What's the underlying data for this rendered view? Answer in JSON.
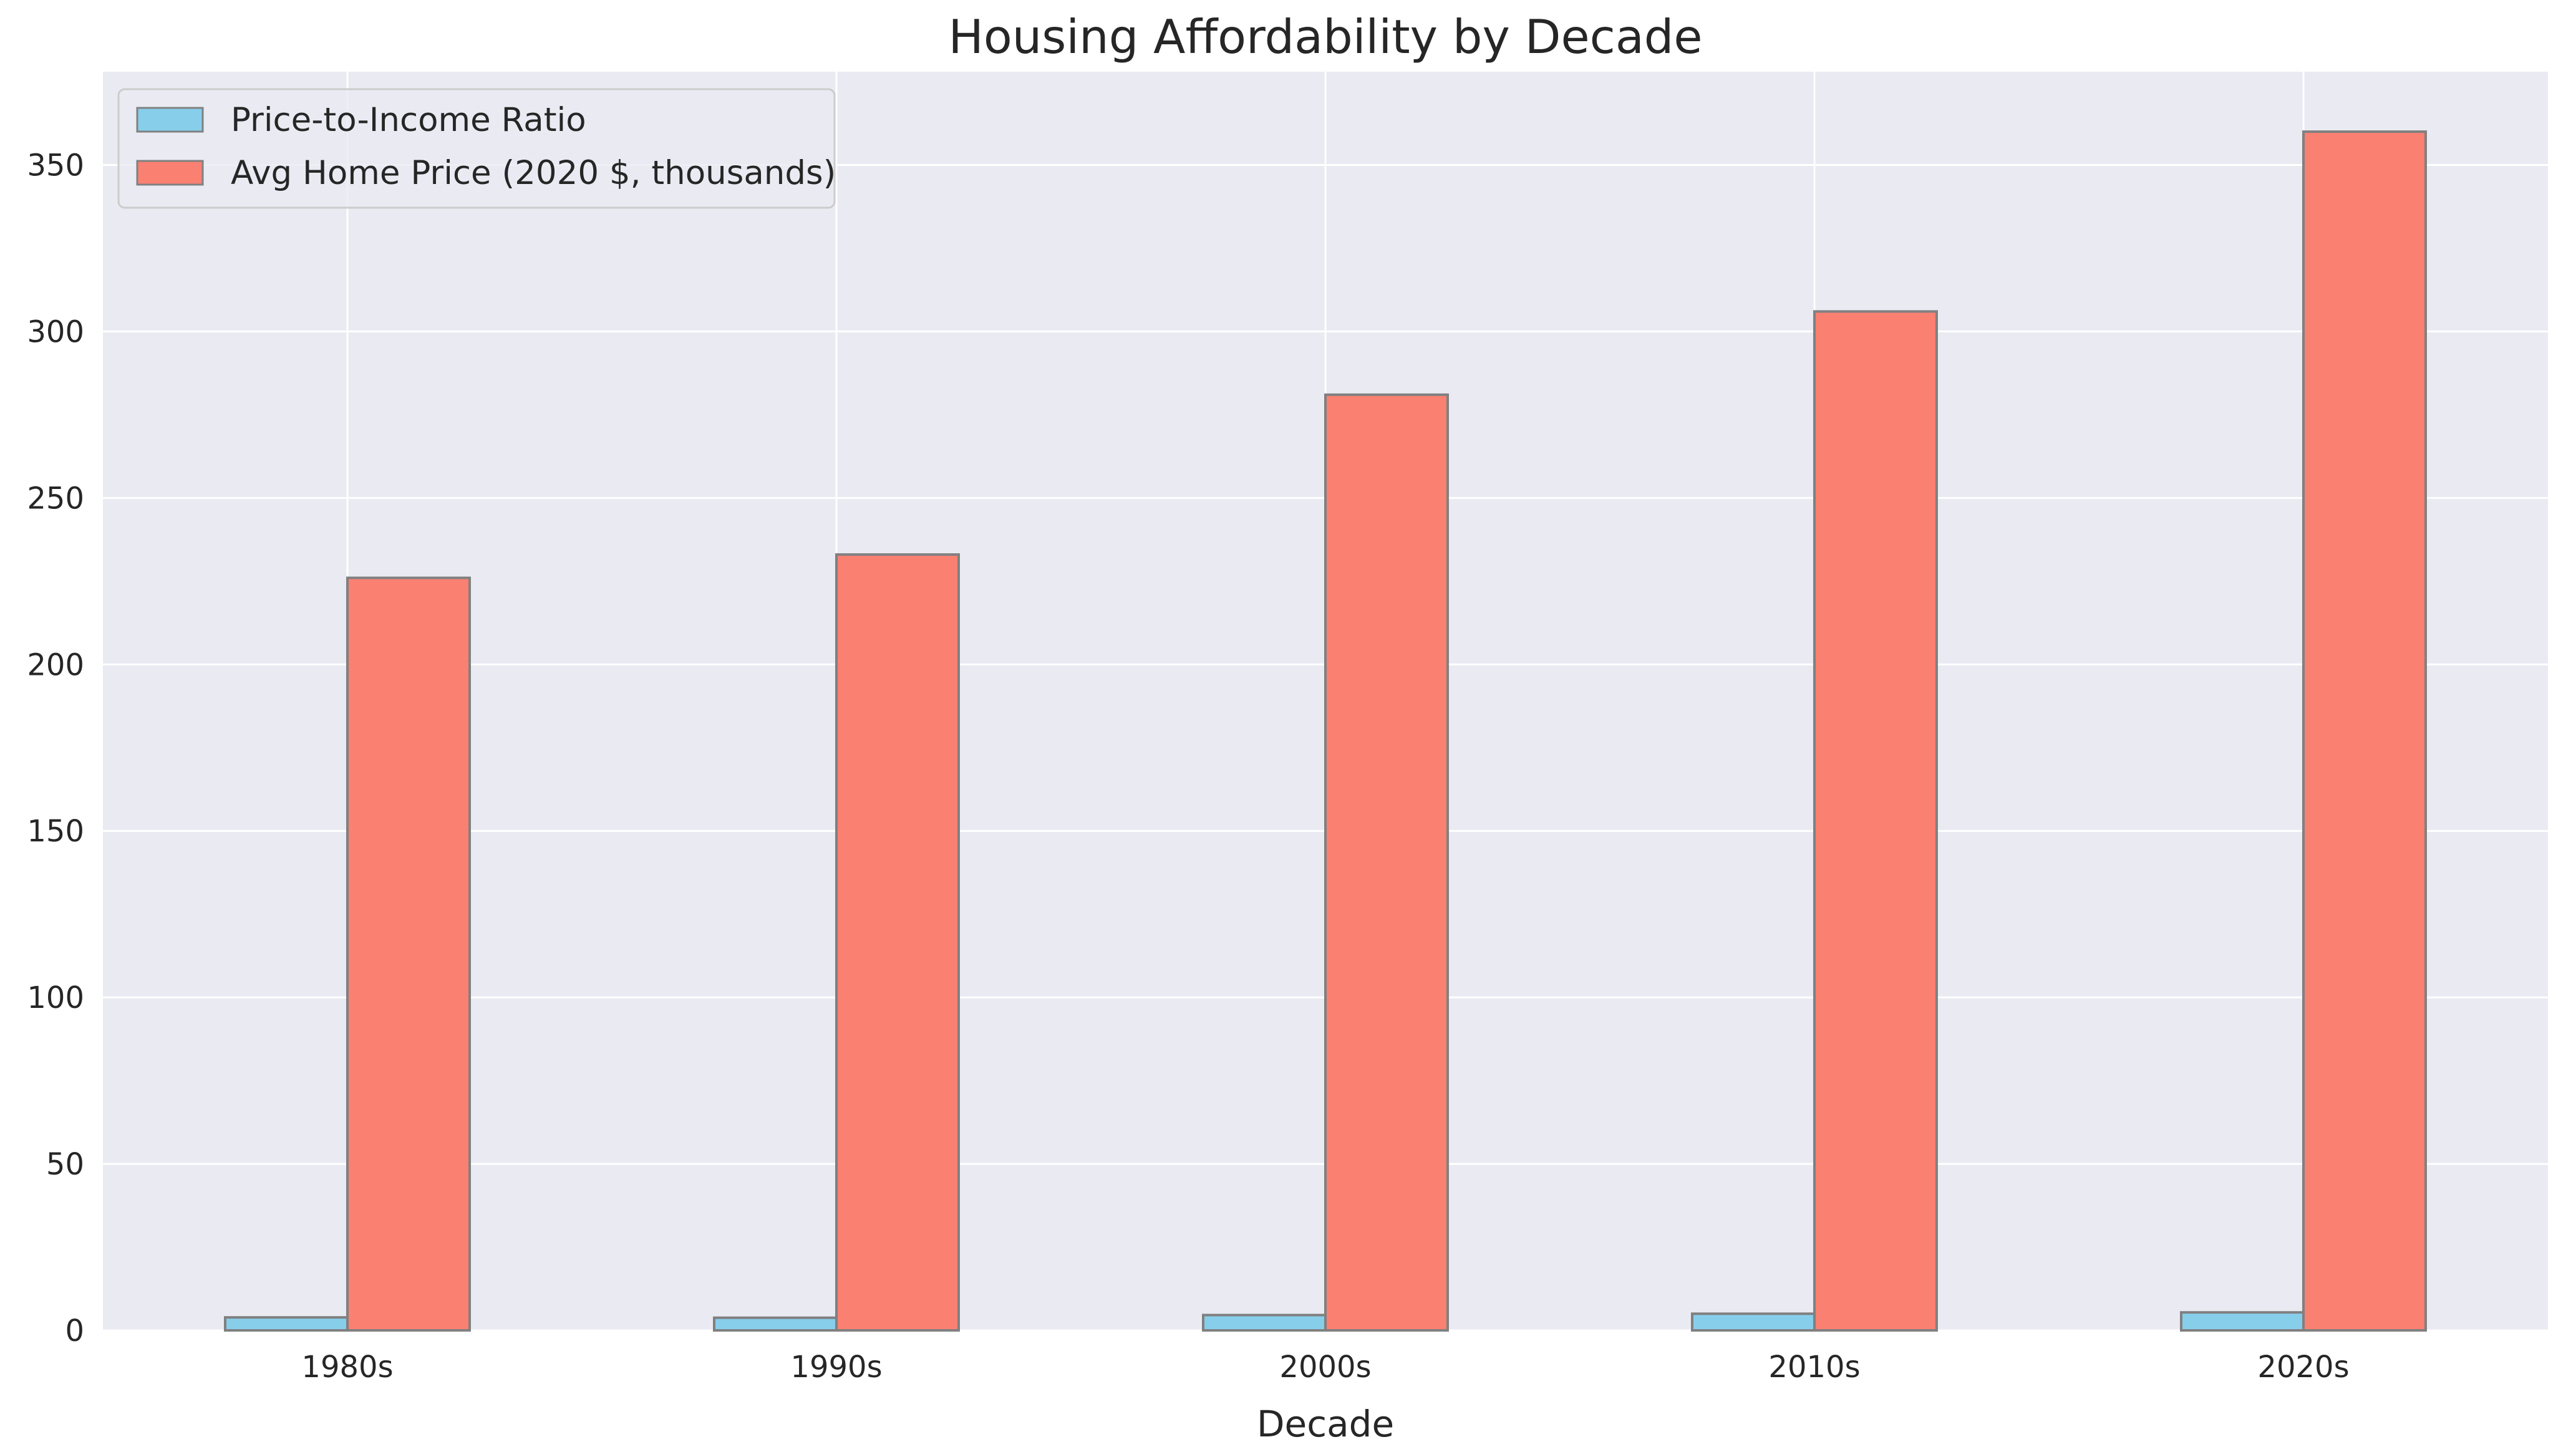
{
  "chart_data": {
    "type": "bar",
    "title": "Housing Affordability by Decade",
    "xlabel": "Decade",
    "ylabel": "",
    "categories": [
      "1980s",
      "1990s",
      "2000s",
      "2010s",
      "2020s"
    ],
    "series": [
      {
        "name": "Price-to-Income Ratio",
        "color": "#87CEEB",
        "values": [
          3.9,
          3.8,
          4.6,
          5.0,
          5.4
        ]
      },
      {
        "name": "Avg Home Price (2020 $, thousands)",
        "color": "#FA8072",
        "values": [
          226,
          233,
          281,
          306,
          360
        ]
      }
    ],
    "ylim": [
      0,
      378
    ],
    "yticks": [
      0,
      50,
      100,
      150,
      200,
      250,
      300,
      350
    ],
    "grid": true,
    "legend_position": "top-left",
    "background": "#EAEAF2",
    "bar_edge_color": "#808080"
  }
}
